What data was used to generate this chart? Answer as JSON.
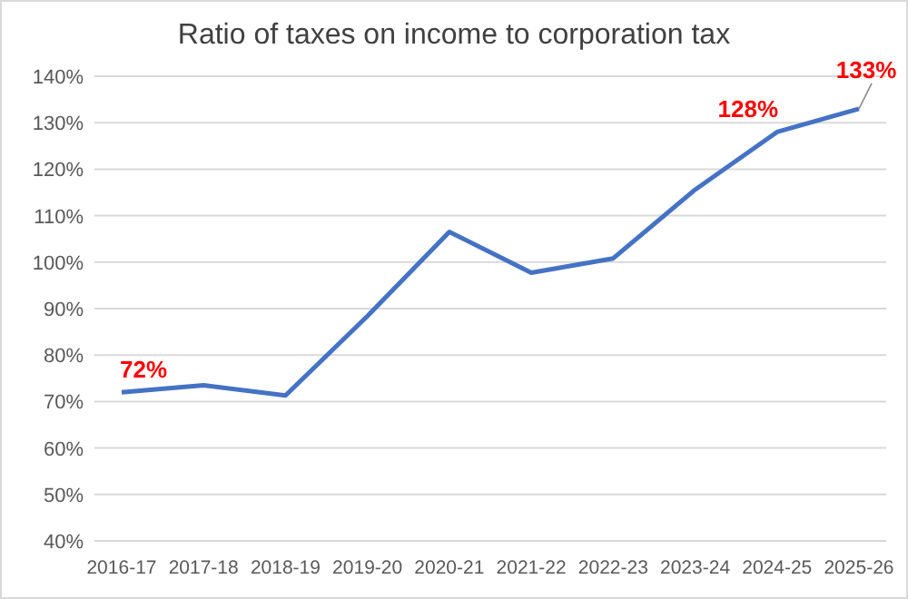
{
  "chart_data": {
    "type": "line",
    "title": "Ratio of taxes on income to corporation tax",
    "categories": [
      "2016-17",
      "2017-18",
      "2018-19",
      "2019-20",
      "2020-21",
      "2021-22",
      "2022-23",
      "2023-24",
      "2024-25",
      "2025-26"
    ],
    "series": [
      {
        "color": "#4472c4",
        "values": [
          72,
          73.5,
          71.3,
          88.4,
          106.5,
          97.7,
          100.8,
          115.6,
          128,
          133
        ],
        "value_labels": [
          "72%",
          null,
          null,
          null,
          null,
          null,
          null,
          null,
          "128%",
          "133%"
        ]
      }
    ],
    "ylim": [
      40,
      140
    ],
    "yticks": [
      {
        "value": 40,
        "label": "40%"
      },
      {
        "value": 50,
        "label": "50%"
      },
      {
        "value": 60,
        "label": "60%"
      },
      {
        "value": 70,
        "label": "70%"
      },
      {
        "value": 80,
        "label": "80%"
      },
      {
        "value": 90,
        "label": "90%"
      },
      {
        "value": 100,
        "label": "100%"
      },
      {
        "value": 110,
        "label": "110%"
      },
      {
        "value": 120,
        "label": "120%"
      },
      {
        "value": 130,
        "label": "130%"
      },
      {
        "value": 140,
        "label": "140%"
      }
    ],
    "grid": "y",
    "marker": "none",
    "line_style": "solid"
  }
}
